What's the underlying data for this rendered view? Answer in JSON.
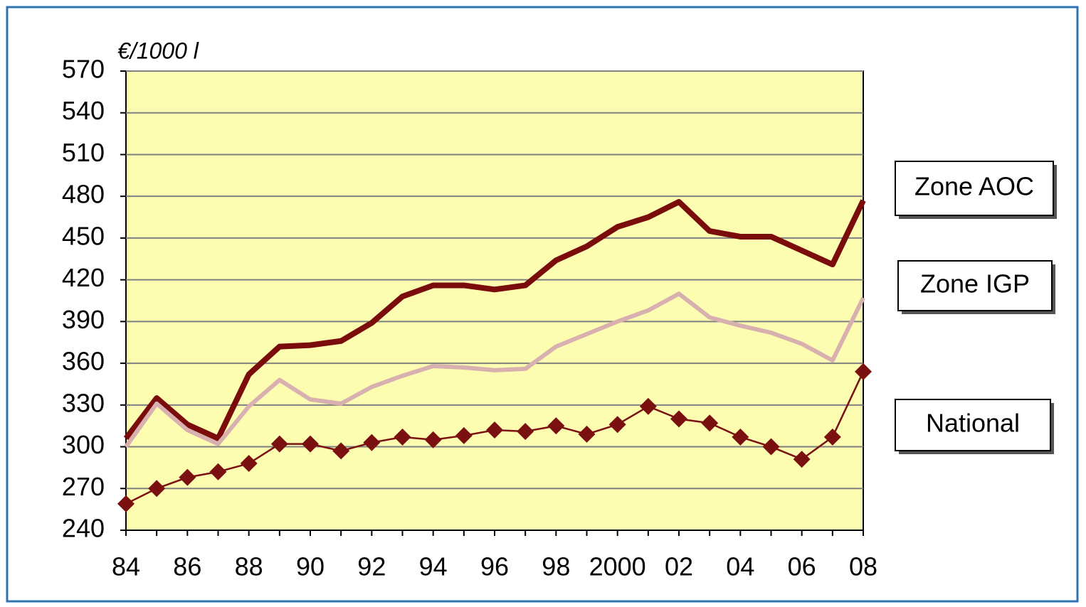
{
  "chart_data": {
    "type": "line",
    "y_label": "€/1000 l",
    "categories": [
      "84",
      null,
      "86",
      null,
      "88",
      null,
      "90",
      null,
      "92",
      null,
      "94",
      null,
      "96",
      null,
      "98",
      null,
      "2000",
      null,
      "02",
      null,
      "04",
      null,
      "06",
      null,
      "08"
    ],
    "series": [
      {
        "name": "Zone AOC",
        "color": "#7b0c0c",
        "values": [
          306,
          335,
          316,
          306,
          352,
          372,
          373,
          376,
          389,
          408,
          416,
          416,
          413,
          416,
          434,
          444,
          458,
          465,
          476,
          455,
          451,
          451,
          441,
          431,
          477
        ]
      },
      {
        "name": "Zone IGP",
        "color": "#d8b0b0",
        "values": [
          300,
          331,
          312,
          302,
          329,
          348,
          334,
          331,
          343,
          351,
          358,
          357,
          355,
          356,
          372,
          381,
          390,
          398,
          410,
          393,
          387,
          382,
          374,
          362,
          407
        ]
      },
      {
        "name": "National",
        "color": "#7b1010",
        "values": [
          259,
          270,
          278,
          282,
          288,
          302,
          302,
          297,
          303,
          307,
          305,
          308,
          312,
          311,
          315,
          309,
          316,
          329,
          320,
          317,
          307,
          300,
          291,
          307,
          354
        ]
      }
    ],
    "ylim": [
      240,
      570
    ],
    "yticks": [
      240,
      270,
      300,
      330,
      360,
      390,
      420,
      450,
      480,
      510,
      540,
      570
    ],
    "grid": true,
    "plot_background": "#fdfdb2"
  }
}
